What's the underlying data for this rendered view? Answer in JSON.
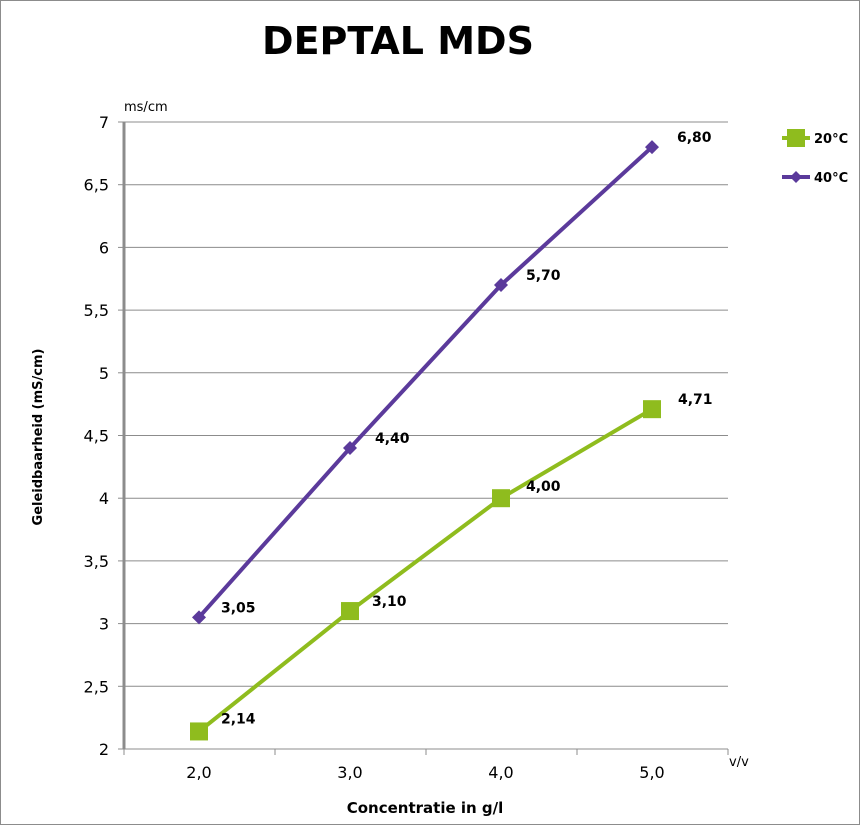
{
  "chart_data": {
    "type": "line",
    "title": "DEPTAL MDS",
    "ylabel": "Geleidbaarheid (mS/cm)",
    "xlabel": "Concentratie in g/l",
    "y_unit": "ms/cm",
    "x_unit": "v/v",
    "categories": [
      "2,0",
      "3,0",
      "4,0",
      "5,0"
    ],
    "ylim": [
      2,
      7
    ],
    "yticks": [
      "2",
      "2,5",
      "3",
      "3,5",
      "4",
      "4,5",
      "5",
      "5,5",
      "6",
      "6,5",
      "7"
    ],
    "grid": true,
    "legend_position": "top-right",
    "series": [
      {
        "name": "20°C",
        "color": "#8fbc1e",
        "marker": "square",
        "values": [
          2.14,
          3.1,
          4.0,
          4.71
        ],
        "labels": [
          "2,14",
          "3,10",
          "4,00",
          "4,71"
        ]
      },
      {
        "name": "40°C",
        "color": "#5b3a9b",
        "marker": "diamond",
        "values": [
          3.05,
          4.4,
          5.7,
          6.8
        ],
        "labels": [
          "3,05",
          "4,40",
          "5,70",
          "6,80"
        ]
      }
    ]
  }
}
